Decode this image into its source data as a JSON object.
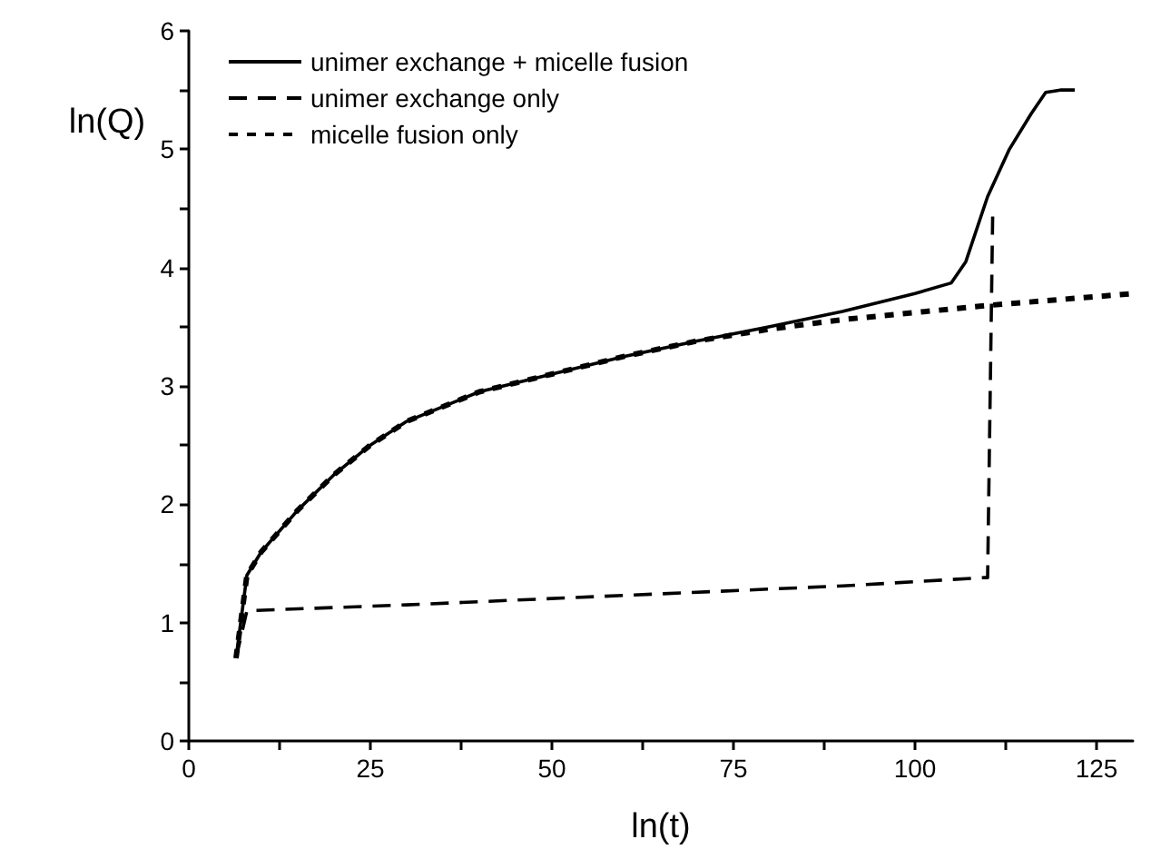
{
  "chart_data": {
    "type": "line",
    "xlabel": "ln(t)",
    "ylabel": "ln(Q)",
    "xlim": [
      0,
      130
    ],
    "ylim": [
      0,
      6
    ],
    "xticks": [
      0,
      {
        "value": 12.5,
        "label": null
      },
      25,
      {
        "value": 37.5,
        "label": null
      },
      50,
      {
        "value": 62.5,
        "label": null
      },
      75,
      {
        "value": 87.5,
        "label": null
      },
      100,
      {
        "value": 112.5,
        "label": null
      },
      125
    ],
    "yticks": [
      0,
      {
        "value": 0.5,
        "label": null
      },
      1,
      {
        "value": 1.5,
        "label": null
      },
      2,
      {
        "value": 2.5,
        "label": null
      },
      3,
      {
        "value": 3.5,
        "label": null
      },
      4,
      {
        "value": 4.5,
        "label": null
      },
      5,
      {
        "value": 5.5,
        "label": null
      },
      6
    ],
    "legend": "top left",
    "grid": false,
    "marker": "none",
    "series": [
      {
        "name": "unimer exchange + micelle fusion",
        "color": "#000000",
        "line_style": "solid",
        "x": [
          6.5,
          8,
          10,
          15,
          20,
          25,
          30,
          40,
          50,
          60,
          70,
          80,
          90,
          100,
          105,
          107,
          110,
          113,
          116,
          118,
          120,
          122
        ],
        "values": [
          0.7,
          1.4,
          1.6,
          1.95,
          2.25,
          2.5,
          2.7,
          2.95,
          3.1,
          3.25,
          3.38,
          3.5,
          3.63,
          3.78,
          3.87,
          4.05,
          4.6,
          5.0,
          5.3,
          5.48,
          5.5,
          5.5
        ]
      },
      {
        "name": "unimer exchange only",
        "color": "#000000",
        "line_style": "dashed",
        "x": [
          6.5,
          8,
          30,
          60,
          90,
          109.5,
          110,
          110.7
        ],
        "values": [
          0.7,
          1.1,
          1.15,
          1.23,
          1.31,
          1.38,
          1.38,
          4.45
        ]
      },
      {
        "name": "micelle fusion only",
        "color": "#000000",
        "line_style": "dotted",
        "x": [
          6.5,
          8,
          10,
          15,
          20,
          25,
          30,
          40,
          50,
          60,
          70,
          80,
          90,
          100,
          110,
          120,
          130
        ],
        "values": [
          0.7,
          1.4,
          1.6,
          1.95,
          2.25,
          2.5,
          2.7,
          2.95,
          3.1,
          3.25,
          3.38,
          3.48,
          3.56,
          3.62,
          3.68,
          3.73,
          3.78
        ]
      }
    ]
  }
}
